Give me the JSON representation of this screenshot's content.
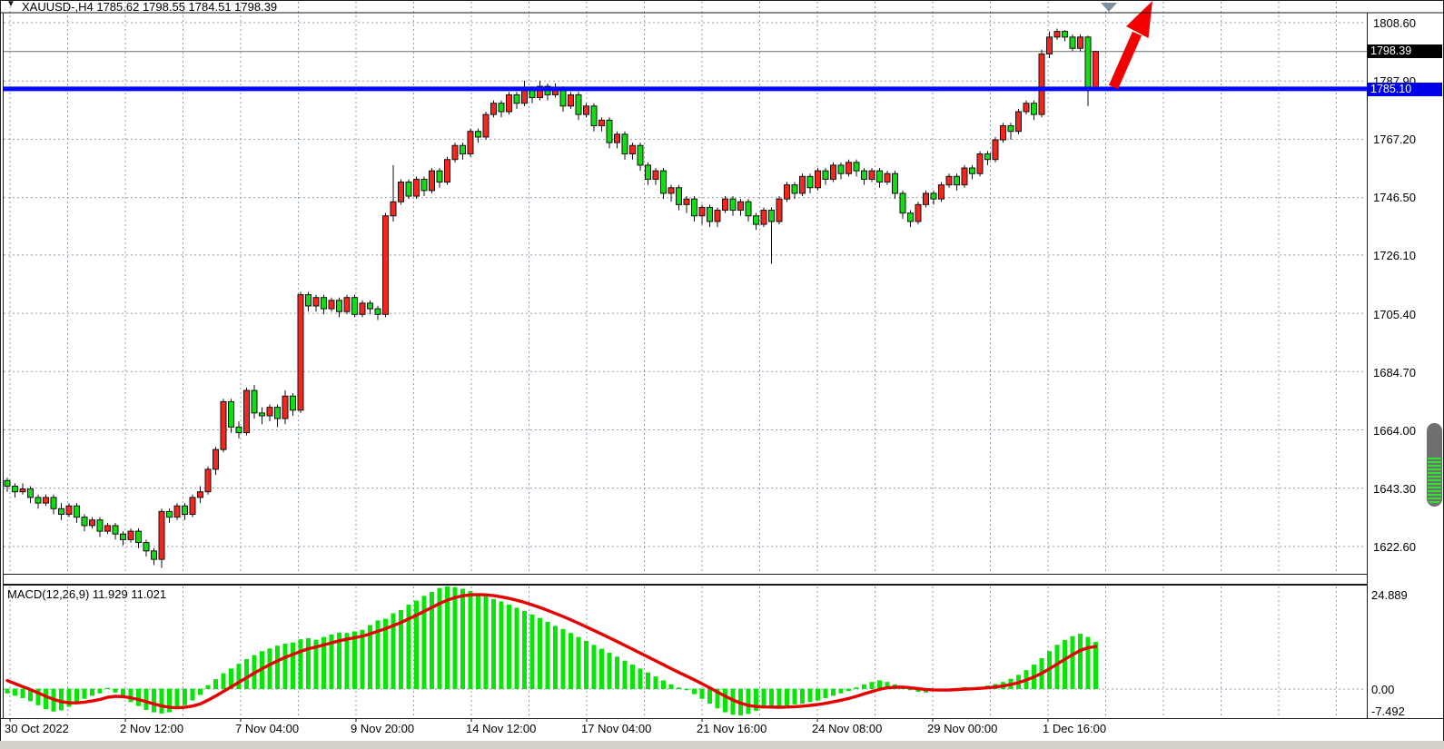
{
  "window": {
    "title": "XAUUSD-,H4  1785.62 1798.55 1784.51 1798.39",
    "symbol": "XAUUSD-",
    "timeframe": "H4",
    "ohlc": {
      "open": "1785.62",
      "high": "1798.55",
      "low": "1784.51",
      "close": "1798.39"
    }
  },
  "price_axis": {
    "labels": [
      "1808.60",
      "1787.90",
      "1767.20",
      "1746.50",
      "1726.10",
      "1705.40",
      "1684.70",
      "1664.00",
      "1643.30",
      "1622.60"
    ],
    "current_price_badge": "1798.39",
    "hline_badge": "1785.10"
  },
  "time_axis": {
    "labels": [
      "30 Oct 2022",
      "2 Nov 12:00",
      "7 Nov 04:00",
      "9 Nov 20:00",
      "14 Nov 12:00",
      "17 Nov 04:00",
      "21 Nov 16:00",
      "24 Nov 08:00",
      "29 Nov 00:00",
      "1 Dec 16:00"
    ]
  },
  "indicator_label": "MACD(12,26,9) 11.929 11.021",
  "macd_axis": {
    "labels": [
      "24.889",
      "0.00",
      "-7.492"
    ]
  },
  "colors": {
    "bull": "#f5261d",
    "bear": "#12dc12",
    "wick": "#111111",
    "grid": "#8f9fb1",
    "hline": "#0008ff",
    "price_line": "#808080",
    "signal": "#e60000",
    "histogram": "#07e507",
    "badge_black_bg": "#000000",
    "badge_blue_bg": "#0000e8",
    "arrow": "#f20000",
    "marker": "#7d90a0"
  },
  "overlays": {
    "horizontal_line_price": 1785.1,
    "current_price": 1798.39
  },
  "chart_data": [
    {
      "type": "candlestick",
      "title": "XAUUSD- H4",
      "x_axis_labels": [
        "30 Oct 2022",
        "2 Nov 12:00",
        "7 Nov 04:00",
        "9 Nov 20:00",
        "14 Nov 12:00",
        "17 Nov 04:00",
        "21 Nov 16:00",
        "24 Nov 08:00",
        "29 Nov 00:00",
        "1 Dec 16:00"
      ],
      "y_axis_ticks": [
        1808.6,
        1787.9,
        1767.2,
        1746.5,
        1726.1,
        1705.4,
        1684.7,
        1664.0,
        1643.3,
        1622.6
      ],
      "horizontal_line": 1785.1,
      "current_price": 1798.39,
      "ohlc": [
        [
          1646,
          1647,
          1642,
          1644
        ],
        [
          1644,
          1645,
          1640,
          1642
        ],
        [
          1642,
          1645,
          1641,
          1643
        ],
        [
          1643,
          1644,
          1638,
          1640
        ],
        [
          1640,
          1641,
          1636,
          1638
        ],
        [
          1638,
          1641,
          1637,
          1640
        ],
        [
          1640,
          1641,
          1634,
          1636
        ],
        [
          1636,
          1638,
          1632,
          1634
        ],
        [
          1634,
          1638,
          1633,
          1637
        ],
        [
          1637,
          1638,
          1631,
          1633
        ],
        [
          1633,
          1634,
          1628,
          1630
        ],
        [
          1630,
          1633,
          1629,
          1632
        ],
        [
          1632,
          1633,
          1626,
          1628
        ],
        [
          1628,
          1631,
          1627,
          1630
        ],
        [
          1630,
          1631,
          1625,
          1627
        ],
        [
          1627,
          1628,
          1623,
          1625
        ],
        [
          1625,
          1629,
          1624,
          1628
        ],
        [
          1628,
          1629,
          1622,
          1624
        ],
        [
          1624,
          1625,
          1619,
          1621
        ],
        [
          1621,
          1622,
          1616,
          1618
        ],
        [
          1618,
          1636,
          1615,
          1635
        ],
        [
          1635,
          1636,
          1631,
          1633
        ],
        [
          1633,
          1638,
          1632,
          1637
        ],
        [
          1637,
          1638,
          1632,
          1634
        ],
        [
          1634,
          1641,
          1633,
          1640
        ],
        [
          1640,
          1644,
          1638,
          1642
        ],
        [
          1642,
          1651,
          1641,
          1650
        ],
        [
          1650,
          1658,
          1648,
          1657
        ],
        [
          1657,
          1675,
          1656,
          1674
        ],
        [
          1674,
          1675,
          1663,
          1665
        ],
        [
          1665,
          1667,
          1661,
          1663
        ],
        [
          1663,
          1679,
          1662,
          1678
        ],
        [
          1678,
          1680,
          1668,
          1670
        ],
        [
          1670,
          1672,
          1666,
          1669
        ],
        [
          1669,
          1673,
          1667,
          1672
        ],
        [
          1672,
          1673,
          1665,
          1668
        ],
        [
          1668,
          1678,
          1666,
          1676
        ],
        [
          1676,
          1677,
          1669,
          1671
        ],
        [
          1671,
          1713,
          1670,
          1712
        ],
        [
          1712,
          1713,
          1706,
          1708
        ],
        [
          1708,
          1712,
          1706,
          1711
        ],
        [
          1711,
          1712,
          1705,
          1707
        ],
        [
          1707,
          1711,
          1706,
          1710
        ],
        [
          1710,
          1711,
          1704,
          1706
        ],
        [
          1706,
          1712,
          1705,
          1711
        ],
        [
          1711,
          1712,
          1704,
          1705
        ],
        [
          1705,
          1710,
          1704,
          1709
        ],
        [
          1709,
          1710,
          1705,
          1707
        ],
        [
          1707,
          1708,
          1703,
          1705
        ],
        [
          1705,
          1741,
          1704,
          1740
        ],
        [
          1740,
          1758,
          1738,
          1745
        ],
        [
          1745,
          1753,
          1744,
          1752
        ],
        [
          1752,
          1753,
          1746,
          1747
        ],
        [
          1747,
          1754,
          1746,
          1753
        ],
        [
          1753,
          1754,
          1747,
          1749
        ],
        [
          1749,
          1757,
          1748,
          1756
        ],
        [
          1756,
          1757,
          1750,
          1752
        ],
        [
          1752,
          1761,
          1751,
          1760
        ],
        [
          1760,
          1766,
          1759,
          1765
        ],
        [
          1765,
          1766,
          1760,
          1762
        ],
        [
          1762,
          1771,
          1761,
          1770
        ],
        [
          1770,
          1771,
          1766,
          1768
        ],
        [
          1768,
          1777,
          1767,
          1776
        ],
        [
          1776,
          1781,
          1775,
          1780
        ],
        [
          1780,
          1781,
          1775,
          1777
        ],
        [
          1777,
          1784,
          1776,
          1783
        ],
        [
          1783,
          1784,
          1778,
          1780
        ],
        [
          1780,
          1788,
          1779,
          1785
        ],
        [
          1785,
          1786,
          1780,
          1782
        ],
        [
          1782,
          1788,
          1781,
          1786
        ],
        [
          1786,
          1787,
          1781,
          1783
        ],
        [
          1783,
          1787,
          1782,
          1785
        ],
        [
          1785,
          1786,
          1777,
          1779
        ],
        [
          1779,
          1784,
          1778,
          1783
        ],
        [
          1783,
          1784,
          1774,
          1776
        ],
        [
          1776,
          1780,
          1775,
          1779
        ],
        [
          1779,
          1780,
          1770,
          1772
        ],
        [
          1772,
          1775,
          1770,
          1774
        ],
        [
          1774,
          1775,
          1764,
          1766
        ],
        [
          1766,
          1770,
          1764,
          1769
        ],
        [
          1769,
          1770,
          1760,
          1762
        ],
        [
          1762,
          1766,
          1760,
          1765
        ],
        [
          1765,
          1766,
          1756,
          1758
        ],
        [
          1758,
          1759,
          1751,
          1753
        ],
        [
          1753,
          1757,
          1751,
          1756
        ],
        [
          1756,
          1757,
          1746,
          1748
        ],
        [
          1748,
          1751,
          1745,
          1750
        ],
        [
          1750,
          1751,
          1742,
          1744
        ],
        [
          1744,
          1747,
          1741,
          1746
        ],
        [
          1746,
          1747,
          1738,
          1740
        ],
        [
          1740,
          1744,
          1737,
          1743
        ],
        [
          1743,
          1744,
          1736,
          1738
        ],
        [
          1738,
          1743,
          1736,
          1742
        ],
        [
          1742,
          1747,
          1741,
          1746
        ],
        [
          1746,
          1747,
          1740,
          1742
        ],
        [
          1742,
          1746,
          1740,
          1745
        ],
        [
          1745,
          1746,
          1738,
          1740
        ],
        [
          1740,
          1741,
          1735,
          1737
        ],
        [
          1737,
          1743,
          1736,
          1742
        ],
        [
          1742,
          1743,
          1723,
          1738
        ],
        [
          1738,
          1747,
          1737,
          1746
        ],
        [
          1746,
          1752,
          1745,
          1751
        ],
        [
          1751,
          1752,
          1746,
          1748
        ],
        [
          1748,
          1755,
          1747,
          1754
        ],
        [
          1754,
          1755,
          1748,
          1750
        ],
        [
          1750,
          1757,
          1749,
          1756
        ],
        [
          1756,
          1757,
          1751,
          1753
        ],
        [
          1753,
          1759,
          1752,
          1758
        ],
        [
          1758,
          1759,
          1753,
          1755
        ],
        [
          1755,
          1760,
          1754,
          1759
        ],
        [
          1759,
          1760,
          1754,
          1756
        ],
        [
          1756,
          1757,
          1751,
          1753
        ],
        [
          1753,
          1757,
          1752,
          1756
        ],
        [
          1756,
          1757,
          1750,
          1752
        ],
        [
          1752,
          1756,
          1751,
          1755
        ],
        [
          1755,
          1756,
          1746,
          1748
        ],
        [
          1748,
          1749,
          1739,
          1741
        ],
        [
          1741,
          1742,
          1736,
          1738
        ],
        [
          1738,
          1745,
          1737,
          1744
        ],
        [
          1744,
          1749,
          1743,
          1748
        ],
        [
          1748,
          1749,
          1744,
          1746
        ],
        [
          1746,
          1752,
          1745,
          1751
        ],
        [
          1751,
          1755,
          1750,
          1754
        ],
        [
          1754,
          1755,
          1749,
          1751
        ],
        [
          1751,
          1758,
          1750,
          1757
        ],
        [
          1757,
          1758,
          1753,
          1755
        ],
        [
          1755,
          1763,
          1754,
          1762
        ],
        [
          1762,
          1763,
          1758,
          1760
        ],
        [
          1760,
          1768,
          1759,
          1767
        ],
        [
          1767,
          1773,
          1766,
          1772
        ],
        [
          1772,
          1773,
          1767,
          1770
        ],
        [
          1770,
          1778,
          1769,
          1777
        ],
        [
          1777,
          1781,
          1776,
          1780
        ],
        [
          1780,
          1781,
          1774,
          1776
        ],
        [
          1776,
          1799,
          1775,
          1797.5
        ],
        [
          1797.5,
          1805.5,
          1796,
          1803.5
        ],
        [
          1803.5,
          1806.5,
          1802.5,
          1805.5
        ],
        [
          1805.5,
          1806,
          1802,
          1803.5
        ],
        [
          1803.5,
          1804.5,
          1798.5,
          1799.5
        ],
        [
          1799.5,
          1804.5,
          1798.5,
          1803.5
        ],
        [
          1803.5,
          1804,
          1779,
          1785.5
        ],
        [
          1785.6,
          1798.6,
          1784.5,
          1798.4
        ]
      ]
    },
    {
      "type": "macd",
      "label": "MACD(12,26,9)",
      "macd_value": 11.929,
      "signal_value": 11.021,
      "y_axis_ticks": [
        24.889,
        0.0,
        -7.492
      ],
      "signal_seed": 3.0,
      "histogram": [
        -1.2,
        -1.8,
        -2.4,
        -3.2,
        -4.2,
        -5.2,
        -5.8,
        -5.5,
        -4.6,
        -3.6,
        -2.6,
        -1.8,
        -1.2,
        0.3,
        -1.0,
        -2.2,
        -3.4,
        -4.4,
        -5.4,
        -6.0,
        -6.3,
        -6.0,
        -5.2,
        -4.2,
        -3.0,
        -1.6,
        1.0,
        2.5,
        4.0,
        5.2,
        6.4,
        7.6,
        8.6,
        9.6,
        10.3,
        11.0,
        11.5,
        11.8,
        12.6,
        12.9,
        12.5,
        13.2,
        13.8,
        14.3,
        14.2,
        14.6,
        15.0,
        16.2,
        17.4,
        17.8,
        19.2,
        20.0,
        21.4,
        22.4,
        23.6,
        24.6,
        25.6,
        26.0,
        25.8,
        25.4,
        24.8,
        24.2,
        23.6,
        22.8,
        22.2,
        21.4,
        20.6,
        19.8,
        18.9,
        18.0,
        17.0,
        16.0,
        15.2,
        14.2,
        13.2,
        12.2,
        11.2,
        10.2,
        9.2,
        8.2,
        7.2,
        6.2,
        5.2,
        4.2,
        3.2,
        2.2,
        1.2,
        0.4,
        -0.4,
        -1.4,
        -2.6,
        -3.8,
        -5.0,
        -6.0,
        -6.6,
        -6.8,
        -6.4,
        -5.6,
        -5.0,
        -4.6,
        -4.8,
        -4.4,
        -4.0,
        -3.8,
        -3.4,
        -3.0,
        -2.4,
        -1.8,
        -1.2,
        -0.6,
        0.4,
        1.2,
        1.8,
        2.2,
        1.8,
        1.2,
        0.6,
        -0.4,
        -0.8,
        -1.0,
        -0.6,
        -0.4,
        -0.2,
        0.3,
        0.5,
        0.4,
        0.6,
        0.9,
        1.3,
        1.8,
        2.6,
        3.6,
        4.8,
        6.2,
        7.8,
        9.6,
        11.2,
        12.4,
        13.4,
        14.0,
        13.2,
        11.929
      ]
    }
  ]
}
